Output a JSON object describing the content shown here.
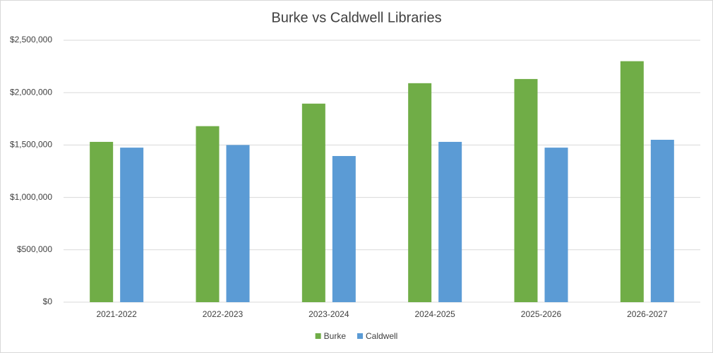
{
  "chart_data": {
    "type": "bar",
    "title": "Burke vs Caldwell Libraries",
    "categories": [
      "2021-2022",
      "2022-2023",
      "2023-2024",
      "2024-2025",
      "2025-2026",
      "2026-2027"
    ],
    "series": [
      {
        "name": "Burke",
        "color": "#70ad47",
        "values": [
          1530000,
          1680000,
          1895000,
          2090000,
          2130000,
          2300000
        ]
      },
      {
        "name": "Caldwell",
        "color": "#5b9bd5",
        "values": [
          1475000,
          1500000,
          1395000,
          1530000,
          1475000,
          1550000
        ]
      }
    ],
    "ylim": [
      0,
      2500000
    ],
    "yticks": [
      {
        "value": 0,
        "label": "$0"
      },
      {
        "value": 500000,
        "label": "$500,000"
      },
      {
        "value": 1000000,
        "label": "$1,000,000"
      },
      {
        "value": 1500000,
        "label": "$1,500,000"
      },
      {
        "value": 2000000,
        "label": "$2,000,000"
      },
      {
        "value": 2500000,
        "label": "$2,500,000"
      }
    ],
    "grid": true,
    "legend": "bottom"
  }
}
